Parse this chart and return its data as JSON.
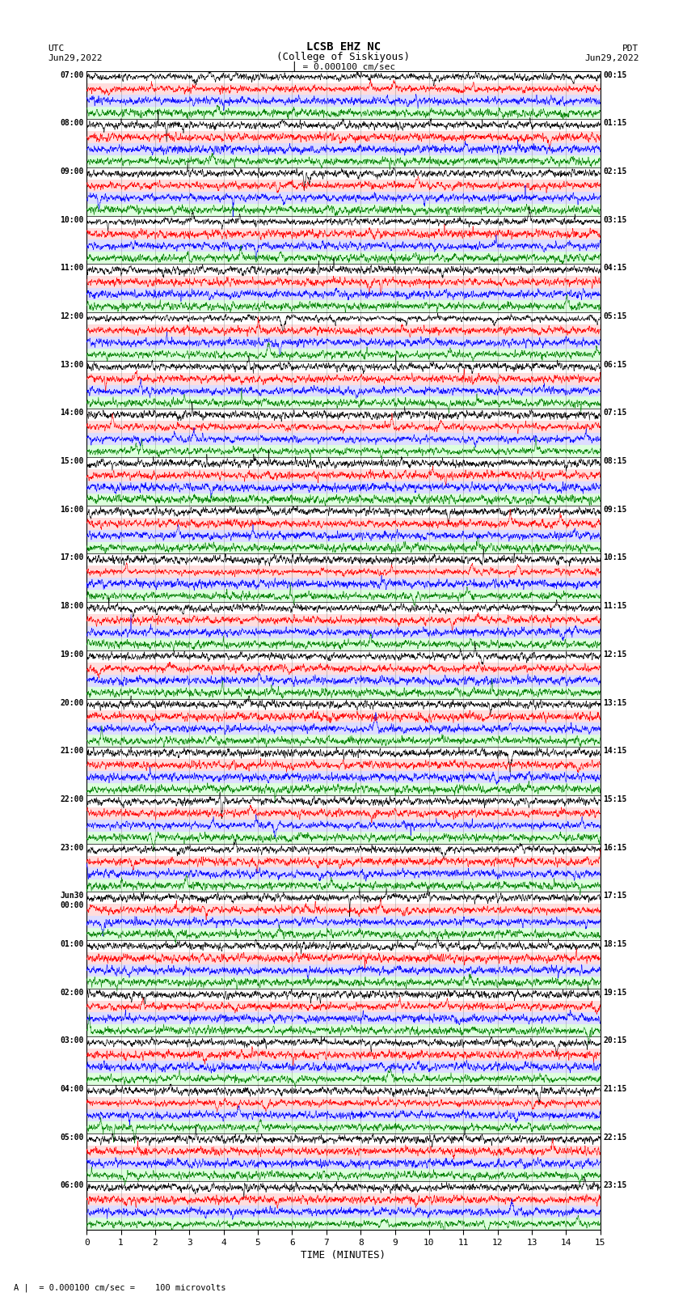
{
  "title_line1": "LCSB EHZ NC",
  "title_line2": "(College of Siskiyous)",
  "scale_label": "= 0.000100 cm/sec",
  "footer_label": "= 0.000100 cm/sec =    100 microvolts",
  "left_header": "UTC",
  "left_date": "Jun29,2022",
  "right_header": "PDT",
  "right_date": "Jun29,2022",
  "xlabel": "TIME (MINUTES)",
  "xlim": [
    0,
    15
  ],
  "xticks": [
    0,
    1,
    2,
    3,
    4,
    5,
    6,
    7,
    8,
    9,
    10,
    11,
    12,
    13,
    14,
    15
  ],
  "colors": [
    "black",
    "red",
    "blue",
    "green"
  ],
  "row_bg_colors": [
    "white",
    "#ffdddd",
    "#ddddff",
    "#ddffdd"
  ],
  "background_color": "white",
  "utc_times": [
    "07:00",
    "08:00",
    "09:00",
    "10:00",
    "11:00",
    "12:00",
    "13:00",
    "14:00",
    "15:00",
    "16:00",
    "17:00",
    "18:00",
    "19:00",
    "20:00",
    "21:00",
    "22:00",
    "23:00",
    "Jun30\n00:00",
    "01:00",
    "02:00",
    "03:00",
    "04:00",
    "05:00",
    "06:00"
  ],
  "pdt_times": [
    "00:15",
    "01:15",
    "02:15",
    "03:15",
    "04:15",
    "05:15",
    "06:15",
    "07:15",
    "08:15",
    "09:15",
    "10:15",
    "11:15",
    "12:15",
    "13:15",
    "14:15",
    "15:15",
    "16:15",
    "17:15",
    "18:15",
    "19:15",
    "20:15",
    "21:15",
    "22:15",
    "23:15"
  ],
  "n_hours": 24,
  "n_cols": 3000,
  "amplitude_scale": 0.42,
  "noise_seed": 42
}
